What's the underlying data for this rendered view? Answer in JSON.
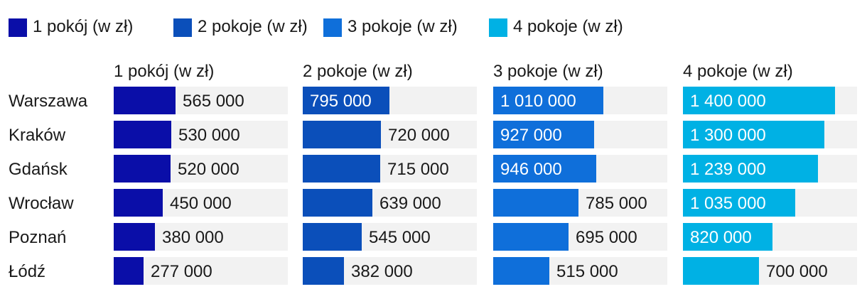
{
  "chart_data": {
    "type": "bar",
    "orientation": "horizontal",
    "layout": "small-multiples",
    "title": "",
    "legend_placement": "top",
    "categories": [
      "Warszawa",
      "Kraków",
      "Gdańsk",
      "Wrocław",
      "Poznań",
      "Łódź"
    ],
    "xlim": [
      0,
      1600000
    ],
    "series": [
      {
        "name": "1 pokój (w zł)",
        "color": "#0a0ea8",
        "values": [
          565000,
          530000,
          520000,
          450000,
          380000,
          277000
        ],
        "labels": [
          "565 000",
          "530 000",
          "520 000",
          "450 000",
          "380 000",
          "277 000"
        ]
      },
      {
        "name": "2 pokoje (w zł)",
        "color": "#0b4fba",
        "values": [
          795000,
          720000,
          715000,
          639000,
          545000,
          382000
        ],
        "labels": [
          "795 000",
          "720 000",
          "715 000",
          "639 000",
          "545 000",
          "382 000"
        ]
      },
      {
        "name": "3 pokoje (w zł)",
        "color": "#0f6fda",
        "values": [
          1010000,
          927000,
          946000,
          785000,
          695000,
          515000
        ],
        "labels": [
          "1 010 000",
          "927 000",
          "946 000",
          "785 000",
          "695 000",
          "515 000"
        ]
      },
      {
        "name": "4 pokoje (w zł)",
        "color": "#00b1e4",
        "values": [
          1400000,
          1300000,
          1239000,
          1035000,
          820000,
          700000
        ],
        "labels": [
          "1 400 000",
          "1 300 000",
          "1 239 000",
          "1 035 000",
          "820 000",
          "700 000"
        ]
      }
    ]
  }
}
